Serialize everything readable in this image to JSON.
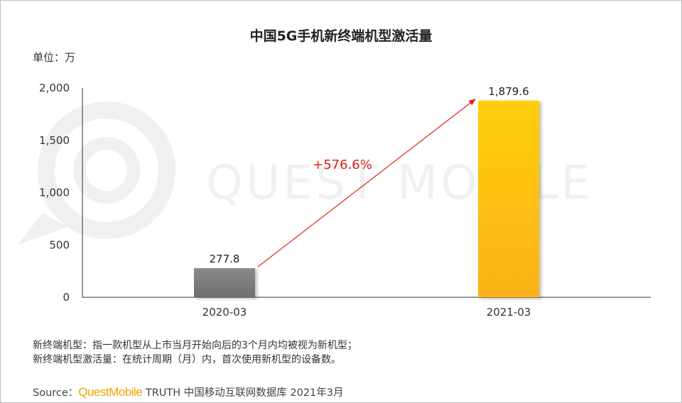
{
  "watermark": "QUEST MOBILE",
  "colors": {
    "bar_2020": "#7a7a7a",
    "bar_2021": "#fdbf10",
    "arrow": "#e0231b",
    "brand": "#f5a300"
  },
  "chart_data": {
    "type": "bar",
    "title": "中国5G手机新终端机型激活量",
    "unit_label": "单位：万",
    "categories": [
      "2020-03",
      "2021-03"
    ],
    "values": [
      277.8,
      1879.6
    ],
    "value_labels": [
      "277.8",
      "1,879.6"
    ],
    "yticks": [
      0,
      500,
      1000,
      1500,
      2000
    ],
    "ytick_labels": [
      "0",
      "500",
      "1,000",
      "1,500",
      "2,000"
    ],
    "ylim": [
      0,
      2000
    ],
    "grid": false,
    "annotation": "+576.6%"
  },
  "notes": [
    "新终端机型：指一款机型从上市当月开始向后的3个月内均被视为新机型；",
    "新终端机型激活量：在统计周期（月）内，首次使用新机型的设备数。"
  ],
  "source": {
    "prefix": "Source：",
    "brand": "QuestMobile",
    "rest": " TRUTH 中国移动互联网数据库 2021年3月"
  }
}
